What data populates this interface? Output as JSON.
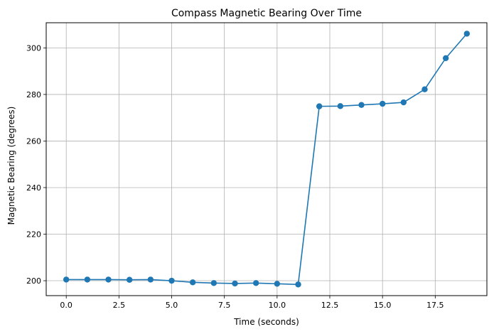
{
  "chart_data": {
    "type": "line",
    "title": "Compass Magnetic Bearing Over Time",
    "xlabel": "Time (seconds)",
    "ylabel": "Magnetic Bearing (degrees)",
    "xlim": [
      -0.95,
      19.95
    ],
    "ylim": [
      193.6,
      310.8
    ],
    "xticks": [
      0,
      2.5,
      5,
      7.5,
      10,
      12.5,
      15,
      17.5
    ],
    "xtick_labels": [
      "0.0",
      "2.5",
      "5.0",
      "7.5",
      "10.0",
      "12.5",
      "15.0",
      "17.5"
    ],
    "yticks": [
      200,
      220,
      240,
      260,
      280,
      300
    ],
    "ytick_labels": [
      "200",
      "220",
      "240",
      "260",
      "280",
      "300"
    ],
    "grid": true,
    "series": [
      {
        "color": "#1f77b4",
        "marker": "circle",
        "x": [
          0,
          1,
          2,
          3,
          4,
          5,
          6,
          7,
          8,
          9,
          10,
          11,
          12,
          13,
          14,
          15,
          16,
          17,
          18,
          19
        ],
        "y": [
          200.5,
          200.5,
          200.5,
          200.4,
          200.5,
          200.0,
          199.3,
          199.0,
          198.8,
          199.0,
          198.7,
          198.4,
          274.9,
          275.0,
          275.5,
          276.0,
          276.6,
          282.2,
          295.6,
          306.1
        ]
      }
    ]
  }
}
